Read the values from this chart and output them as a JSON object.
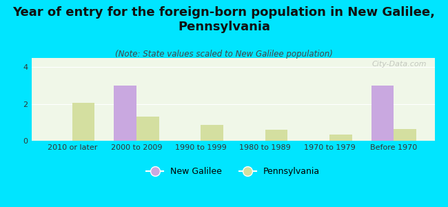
{
  "title": "Year of entry for the foreign-born population in New Galilee,\nPennsylvania",
  "subtitle": "(Note: State values scaled to New Galilee population)",
  "categories": [
    "2010 or later",
    "2000 to 2009",
    "1990 to 1999",
    "1980 to 1989",
    "1970 to 1979",
    "Before 1970"
  ],
  "new_galilee": [
    0,
    3.0,
    0,
    0,
    0,
    3.0
  ],
  "pennsylvania": [
    2.05,
    1.3,
    0.85,
    0.6,
    0.35,
    0.65
  ],
  "bar_color_galilee": "#c9a8e0",
  "bar_color_pa": "#d4dfa0",
  "background_outer": "#00e5ff",
  "background_inner": "#f0f7e8",
  "ylim": [
    0,
    4.5
  ],
  "yticks": [
    0,
    2,
    4
  ],
  "bar_width": 0.35,
  "title_fontsize": 13,
  "subtitle_fontsize": 8.5,
  "tick_fontsize": 8,
  "legend_fontsize": 9,
  "watermark": "City-Data.com"
}
